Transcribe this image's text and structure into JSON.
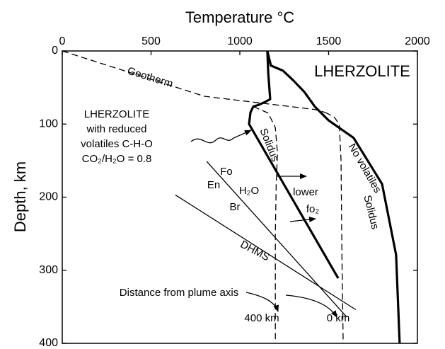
{
  "chart_data": {
    "type": "line",
    "title": "Temperature °C",
    "y_label": "Depth, km",
    "x_axis_position": "top",
    "y_inverted": true,
    "xlim": [
      0,
      2000
    ],
    "xticks": [
      0,
      500,
      1000,
      1500,
      2000
    ],
    "ylim": [
      0,
      400
    ],
    "yticks": [
      0,
      100,
      200,
      300,
      400
    ],
    "grid": false,
    "series": [
      {
        "color": "#000",
        "line_style": "dashed",
        "weight": "normal",
        "x": [
          0,
          800,
          1420,
          1480
        ],
        "values": [
          0,
          62,
          80,
          84
        ]
      },
      {
        "color": "#000",
        "line_style": "solid",
        "weight": "bold",
        "x": [
          1155,
          1160,
          1171,
          1140,
          1103,
          1076,
          1060,
          1052,
          1554
        ],
        "values": [
          0,
          30,
          66,
          70,
          74,
          76,
          84,
          100,
          311
        ]
      },
      {
        "color": "#000",
        "line_style": "solid",
        "weight": "bold",
        "x": [
          1155,
          1175,
          1243,
          1300,
          1363,
          1422,
          1500,
          1641,
          1801,
          1880,
          1900
        ],
        "values": [
          0,
          20,
          27,
          40,
          56,
          76,
          95,
          119,
          182,
          279,
          400
        ]
      },
      {
        "color": "#000",
        "line_style": "dashed",
        "weight": "normal",
        "x": [
          1076,
          1160,
          1200,
          1212,
          1205,
          1200,
          1200
        ],
        "values": [
          76,
          85,
          105,
          140,
          180,
          250,
          400
        ]
      },
      {
        "color": "#000",
        "line_style": "dashed",
        "weight": "normal",
        "x": [
          1480,
          1530,
          1560,
          1570,
          1575,
          1582
        ],
        "values": [
          84,
          90,
          100,
          150,
          280,
          400
        ]
      },
      {
        "color": "#000",
        "line_style": "solid",
        "weight": "normal",
        "x": [
          813,
          1602
        ],
        "values": [
          151,
          364
        ]
      },
      {
        "color": "#000",
        "line_style": "solid",
        "weight": "normal",
        "x": [
          637,
          1653
        ],
        "values": [
          197,
          354
        ]
      }
    ],
    "annotations": [
      "LHERZOLITE",
      "Geotherm",
      "LHERZOLITE",
      "with reduced",
      "volatiles C-H-O",
      "CO₂/H₂O = 0.8",
      "Solidus",
      "No volatiles",
      "Solidus",
      "Fo",
      "En",
      "H₂O",
      "Br",
      "lower",
      "fo₂",
      "DHMS",
      "Distance from plume axis",
      "400 km",
      "0 km"
    ]
  }
}
